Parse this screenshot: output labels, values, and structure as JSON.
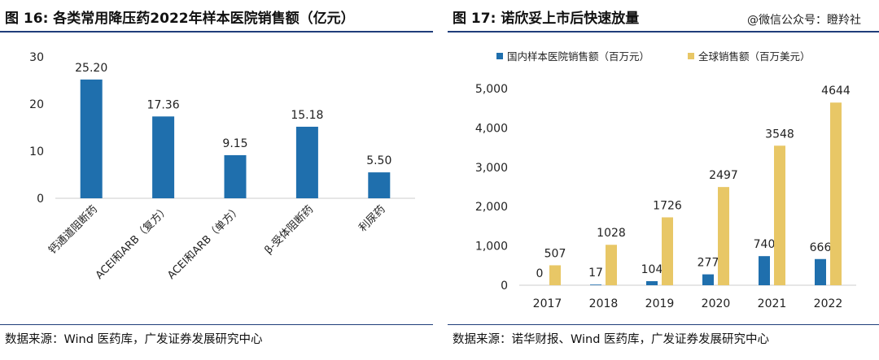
{
  "left": {
    "title": "图 16: 各类常用降压药2022年样本医院销售额（亿元）",
    "source": "数据来源：Wind 医药库，广发证券发展研究中心"
  },
  "right": {
    "title": "图 17: 诺欣妥上市后快速放量",
    "watermark": "@微信公众号：瞪羚社",
    "source": "数据来源：诺华财报、Wind 医药库，广发证券发展研究中心"
  },
  "colors": {
    "blue": "#1f6fad",
    "gold": "#e8c766",
    "axis": "#cccccc"
  },
  "chart_data": [
    {
      "type": "bar",
      "title": "各类常用降压药2022年样本医院销售额（亿元）",
      "categories": [
        "钙通道阻断药",
        "ACEI和ARB（复方）",
        "ACEI和ARB（单方）",
        "β-受体阻断药",
        "利尿药"
      ],
      "values": [
        25.2,
        17.36,
        9.15,
        15.18,
        5.5
      ],
      "value_labels": [
        "25.20",
        "17.36",
        "9.15",
        "15.18",
        "5.50"
      ],
      "ylim": [
        0,
        30
      ],
      "yticks": [
        0,
        10,
        20,
        30
      ],
      "xlabel": "",
      "ylabel": "",
      "grid": false,
      "color": "#1f6fad"
    },
    {
      "type": "bar",
      "title": "诺欣妥上市后快速放量",
      "categories": [
        "2017",
        "2018",
        "2019",
        "2020",
        "2021",
        "2022"
      ],
      "series": [
        {
          "name": "国内样本医院销售额（百万元）",
          "values": [
            0,
            17,
            104,
            277,
            740,
            666
          ],
          "color": "#1f6fad"
        },
        {
          "name": "全球销售额（百万美元）",
          "values": [
            507,
            1028,
            1726,
            2497,
            3548,
            4644
          ],
          "color": "#e8c766"
        }
      ],
      "ylim": [
        0,
        5000
      ],
      "yticks": [
        0,
        1000,
        2000,
        3000,
        4000,
        5000
      ],
      "ytick_labels": [
        "0",
        "1,000",
        "2,000",
        "3,000",
        "4,000",
        "5,000"
      ],
      "xlabel": "",
      "ylabel": "",
      "grid": false,
      "legend": "top-left"
    }
  ]
}
